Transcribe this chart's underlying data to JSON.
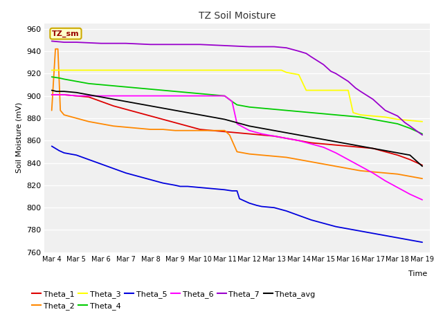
{
  "title": "TZ Soil Moisture",
  "xlabel": "Time",
  "ylabel": "Soil Moisture (mV)",
  "ylim": [
    760,
    965
  ],
  "xlim": [
    -0.3,
    15.3
  ],
  "plot_bg_color": "#f0f0f0",
  "fig_bg_color": "#ffffff",
  "legend_label": "TZ_sm",
  "legend_box_facecolor": "#ffffcc",
  "legend_box_edgecolor": "#ccaa00",
  "legend_text_color": "#990000",
  "xtick_labels": [
    "Mar 4",
    "Mar 5",
    "Mar 6",
    "Mar 7",
    "Mar 8",
    "Mar 9",
    "Mar 10",
    "Mar 11",
    "Mar 12",
    "Mar 13",
    "Mar 14",
    "Mar 15",
    "Mar 16",
    "Mar 17",
    "Mar 18",
    "Mar 19"
  ],
  "ytick_values": [
    760,
    780,
    800,
    820,
    840,
    860,
    880,
    900,
    920,
    940,
    960
  ],
  "series": {
    "Theta_1": {
      "color": "#dd0000",
      "points": [
        [
          0,
          901
        ],
        [
          0.1,
          901
        ],
        [
          0.5,
          901
        ],
        [
          1,
          900
        ],
        [
          1.5,
          899
        ],
        [
          2,
          895
        ],
        [
          2.5,
          891
        ],
        [
          3,
          888
        ],
        [
          3.5,
          885
        ],
        [
          4,
          882
        ],
        [
          4.5,
          879
        ],
        [
          5,
          876
        ],
        [
          5.5,
          873
        ],
        [
          6,
          870
        ],
        [
          6.5,
          869
        ],
        [
          7,
          868
        ],
        [
          7.5,
          867
        ],
        [
          8,
          866
        ],
        [
          8.5,
          865
        ],
        [
          9,
          864
        ],
        [
          9.5,
          862
        ],
        [
          10,
          860
        ],
        [
          10.5,
          858
        ],
        [
          11,
          857
        ],
        [
          11.5,
          856
        ],
        [
          12,
          855
        ],
        [
          12.5,
          854
        ],
        [
          13,
          853
        ],
        [
          13.5,
          850
        ],
        [
          14,
          847
        ],
        [
          14.5,
          843
        ],
        [
          15,
          838
        ]
      ]
    },
    "Theta_2": {
      "color": "#ff8800",
      "points": [
        [
          0,
          887
        ],
        [
          0.15,
          942
        ],
        [
          0.25,
          942
        ],
        [
          0.35,
          887
        ],
        [
          0.5,
          883
        ],
        [
          1,
          880
        ],
        [
          1.5,
          877
        ],
        [
          2,
          875
        ],
        [
          2.5,
          873
        ],
        [
          3,
          872
        ],
        [
          3.5,
          871
        ],
        [
          4,
          870
        ],
        [
          4.5,
          870
        ],
        [
          5,
          869
        ],
        [
          5.5,
          869
        ],
        [
          6,
          869
        ],
        [
          6.5,
          869
        ],
        [
          7,
          869
        ],
        [
          7.2,
          865
        ],
        [
          7.5,
          850
        ],
        [
          8,
          848
        ],
        [
          8.5,
          847
        ],
        [
          9,
          846
        ],
        [
          9.5,
          845
        ],
        [
          10,
          843
        ],
        [
          10.5,
          841
        ],
        [
          11,
          839
        ],
        [
          11.5,
          837
        ],
        [
          12,
          835
        ],
        [
          12.5,
          833
        ],
        [
          13,
          832
        ],
        [
          13.5,
          831
        ],
        [
          14,
          830
        ],
        [
          14.5,
          828
        ],
        [
          15,
          826
        ]
      ]
    },
    "Theta_3": {
      "color": "#ffff00",
      "points": [
        [
          0,
          923
        ],
        [
          0.5,
          923
        ],
        [
          1,
          923
        ],
        [
          2,
          923
        ],
        [
          3,
          923
        ],
        [
          4,
          923
        ],
        [
          5,
          923
        ],
        [
          6,
          923
        ],
        [
          7,
          923
        ],
        [
          8,
          923
        ],
        [
          9,
          923
        ],
        [
          9.3,
          923
        ],
        [
          9.5,
          921
        ],
        [
          10,
          919
        ],
        [
          10.3,
          905
        ],
        [
          10.5,
          905
        ],
        [
          11,
          905
        ],
        [
          12,
          905
        ],
        [
          12.2,
          885
        ],
        [
          12.5,
          883
        ],
        [
          13,
          882
        ],
        [
          13.5,
          881
        ],
        [
          14,
          879
        ],
        [
          14.5,
          878
        ],
        [
          15,
          877
        ]
      ]
    },
    "Theta_4": {
      "color": "#00cc00",
      "points": [
        [
          0,
          917
        ],
        [
          0.3,
          916
        ],
        [
          0.5,
          915
        ],
        [
          1,
          913
        ],
        [
          1.5,
          911
        ],
        [
          2,
          910
        ],
        [
          2.5,
          909
        ],
        [
          3,
          908
        ],
        [
          3.5,
          907
        ],
        [
          4,
          906
        ],
        [
          4.5,
          905
        ],
        [
          5,
          904
        ],
        [
          5.5,
          903
        ],
        [
          6,
          902
        ],
        [
          6.5,
          901
        ],
        [
          7,
          900
        ],
        [
          7.3,
          895
        ],
        [
          7.5,
          892
        ],
        [
          8,
          890
        ],
        [
          8.5,
          889
        ],
        [
          9,
          888
        ],
        [
          9.5,
          887
        ],
        [
          10,
          886
        ],
        [
          10.5,
          885
        ],
        [
          11,
          884
        ],
        [
          11.5,
          883
        ],
        [
          12,
          882
        ],
        [
          12.5,
          881
        ],
        [
          13,
          879
        ],
        [
          13.5,
          877
        ],
        [
          14,
          875
        ],
        [
          14.5,
          871
        ],
        [
          15,
          866
        ]
      ]
    },
    "Theta_5": {
      "color": "#0000dd",
      "points": [
        [
          0,
          855
        ],
        [
          0.3,
          851
        ],
        [
          0.5,
          849
        ],
        [
          1,
          847
        ],
        [
          1.5,
          843
        ],
        [
          2,
          839
        ],
        [
          2.5,
          835
        ],
        [
          3,
          831
        ],
        [
          3.5,
          828
        ],
        [
          4,
          825
        ],
        [
          4.5,
          822
        ],
        [
          5,
          820
        ],
        [
          5.2,
          819
        ],
        [
          5.5,
          819
        ],
        [
          6,
          818
        ],
        [
          6.5,
          817
        ],
        [
          7,
          816
        ],
        [
          7.3,
          815
        ],
        [
          7.5,
          815
        ],
        [
          7.6,
          808
        ],
        [
          8,
          804
        ],
        [
          8.3,
          802
        ],
        [
          8.5,
          801
        ],
        [
          9,
          800
        ],
        [
          9.5,
          797
        ],
        [
          10,
          793
        ],
        [
          10.5,
          789
        ],
        [
          11,
          786
        ],
        [
          11.5,
          783
        ],
        [
          12,
          781
        ],
        [
          12.5,
          779
        ],
        [
          13,
          777
        ],
        [
          13.5,
          775
        ],
        [
          14,
          773
        ],
        [
          14.5,
          771
        ],
        [
          15,
          769
        ]
      ]
    },
    "Theta_6": {
      "color": "#ff00ff",
      "points": [
        [
          0,
          901
        ],
        [
          0.5,
          901
        ],
        [
          1,
          900
        ],
        [
          2,
          900
        ],
        [
          3,
          900
        ],
        [
          4,
          900
        ],
        [
          5,
          900
        ],
        [
          6,
          900
        ],
        [
          6.5,
          900
        ],
        [
          7,
          900
        ],
        [
          7.3,
          895
        ],
        [
          7.5,
          875
        ],
        [
          8,
          869
        ],
        [
          8.5,
          866
        ],
        [
          9,
          864
        ],
        [
          9.5,
          862
        ],
        [
          10,
          860
        ],
        [
          10.5,
          857
        ],
        [
          11,
          854
        ],
        [
          11.5,
          849
        ],
        [
          12,
          843
        ],
        [
          12.5,
          837
        ],
        [
          13,
          831
        ],
        [
          13.5,
          824
        ],
        [
          14,
          818
        ],
        [
          14.5,
          812
        ],
        [
          15,
          807
        ]
      ]
    },
    "Theta_7": {
      "color": "#9900cc",
      "points": [
        [
          0,
          949
        ],
        [
          0.5,
          948
        ],
        [
          1,
          948
        ],
        [
          2,
          947
        ],
        [
          3,
          947
        ],
        [
          4,
          946
        ],
        [
          5,
          946
        ],
        [
          6,
          946
        ],
        [
          7,
          945
        ],
        [
          8,
          944
        ],
        [
          9,
          944
        ],
        [
          9.5,
          943
        ],
        [
          10,
          940
        ],
        [
          10.3,
          938
        ],
        [
          10.5,
          935
        ],
        [
          11,
          928
        ],
        [
          11.3,
          922
        ],
        [
          11.5,
          920
        ],
        [
          12,
          913
        ],
        [
          12.3,
          907
        ],
        [
          12.5,
          904
        ],
        [
          13,
          897
        ],
        [
          13.3,
          891
        ],
        [
          13.5,
          887
        ],
        [
          14,
          882
        ],
        [
          14.3,
          876
        ],
        [
          14.5,
          873
        ],
        [
          15,
          865
        ]
      ]
    },
    "Theta_avg": {
      "color": "#000000",
      "points": [
        [
          0,
          905
        ],
        [
          0.2,
          904
        ],
        [
          0.5,
          904
        ],
        [
          1,
          903
        ],
        [
          1.5,
          901
        ],
        [
          2,
          899
        ],
        [
          2.5,
          897
        ],
        [
          3,
          895
        ],
        [
          3.5,
          893
        ],
        [
          4,
          891
        ],
        [
          4.5,
          889
        ],
        [
          5,
          887
        ],
        [
          5.5,
          885
        ],
        [
          6,
          883
        ],
        [
          6.5,
          881
        ],
        [
          7,
          879
        ],
        [
          7.5,
          876
        ],
        [
          8,
          873
        ],
        [
          8.5,
          871
        ],
        [
          9,
          869
        ],
        [
          9.5,
          867
        ],
        [
          10,
          865
        ],
        [
          10.5,
          863
        ],
        [
          11,
          861
        ],
        [
          11.5,
          859
        ],
        [
          12,
          857
        ],
        [
          12.5,
          855
        ],
        [
          13,
          853
        ],
        [
          13.5,
          851
        ],
        [
          14,
          849
        ],
        [
          14.5,
          847
        ],
        [
          15,
          837
        ]
      ]
    }
  },
  "legend_order": [
    "Theta_1",
    "Theta_2",
    "Theta_3",
    "Theta_4",
    "Theta_5",
    "Theta_6",
    "Theta_7",
    "Theta_avg"
  ]
}
